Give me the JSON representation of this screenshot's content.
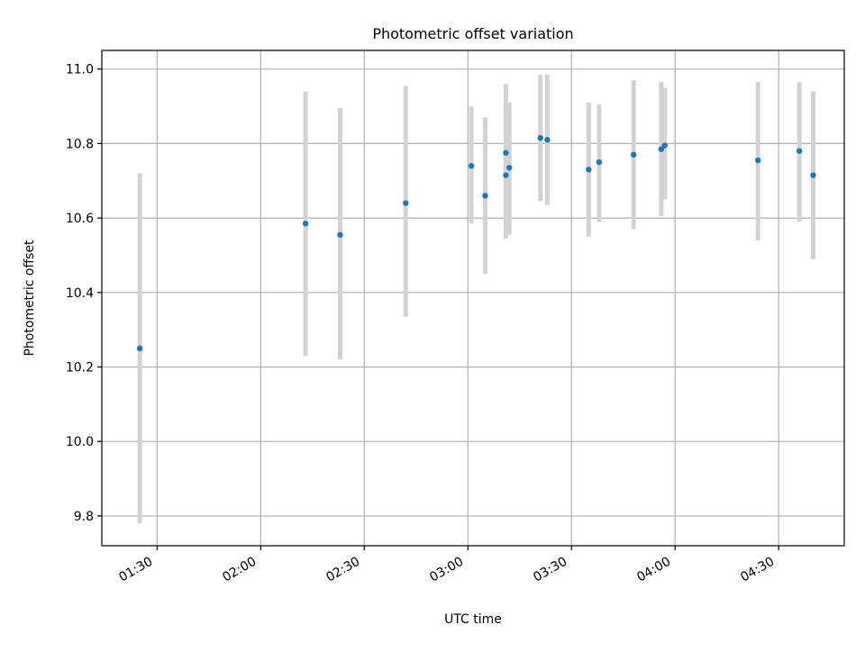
{
  "chart_data": {
    "type": "scatter",
    "title": "Photometric offset variation",
    "xlabel": "UTC time",
    "ylabel": "Photometric offset",
    "x_ticks": [
      "01:30",
      "02:00",
      "02:30",
      "03:00",
      "03:30",
      "04:00",
      "04:30"
    ],
    "y_ticks": [
      "9.8",
      "10.0",
      "10.2",
      "10.4",
      "10.6",
      "10.8",
      "11.0"
    ],
    "xlim": [
      "01:14",
      "04:49"
    ],
    "ylim": [
      9.72,
      11.05
    ],
    "grid": true,
    "error_bar_color": "#d3d3d3",
    "marker_color": "#1f77b4",
    "points": [
      {
        "time": "01:25",
        "y": 10.25,
        "ylow": 9.78,
        "yhigh": 10.72
      },
      {
        "time": "02:13",
        "y": 10.585,
        "ylow": 10.23,
        "yhigh": 10.94
      },
      {
        "time": "02:23",
        "y": 10.555,
        "ylow": 10.22,
        "yhigh": 10.895
      },
      {
        "time": "02:42",
        "y": 10.64,
        "ylow": 10.335,
        "yhigh": 10.955
      },
      {
        "time": "03:01",
        "y": 10.74,
        "ylow": 10.585,
        "yhigh": 10.9
      },
      {
        "time": "03:05",
        "y": 10.66,
        "ylow": 10.45,
        "yhigh": 10.87
      },
      {
        "time": "03:11",
        "y": 10.715,
        "ylow": 10.545,
        "yhigh": 10.885
      },
      {
        "time": "03:11",
        "y": 10.775,
        "ylow": 10.59,
        "yhigh": 10.96
      },
      {
        "time": "03:12",
        "y": 10.735,
        "ylow": 10.555,
        "yhigh": 10.91
      },
      {
        "time": "03:21",
        "y": 10.815,
        "ylow": 10.645,
        "yhigh": 10.985
      },
      {
        "time": "03:23",
        "y": 10.81,
        "ylow": 10.635,
        "yhigh": 10.985
      },
      {
        "time": "03:35",
        "y": 10.73,
        "ylow": 10.55,
        "yhigh": 10.91
      },
      {
        "time": "03:38",
        "y": 10.75,
        "ylow": 10.59,
        "yhigh": 10.905
      },
      {
        "time": "03:48",
        "y": 10.77,
        "ylow": 10.57,
        "yhigh": 10.97
      },
      {
        "time": "03:56",
        "y": 10.785,
        "ylow": 10.605,
        "yhigh": 10.965
      },
      {
        "time": "03:57",
        "y": 10.795,
        "ylow": 10.65,
        "yhigh": 10.95
      },
      {
        "time": "04:24",
        "y": 10.755,
        "ylow": 10.54,
        "yhigh": 10.965
      },
      {
        "time": "04:36",
        "y": 10.78,
        "ylow": 10.59,
        "yhigh": 10.965
      },
      {
        "time": "04:40",
        "y": 10.715,
        "ylow": 10.49,
        "yhigh": 10.94
      }
    ]
  }
}
